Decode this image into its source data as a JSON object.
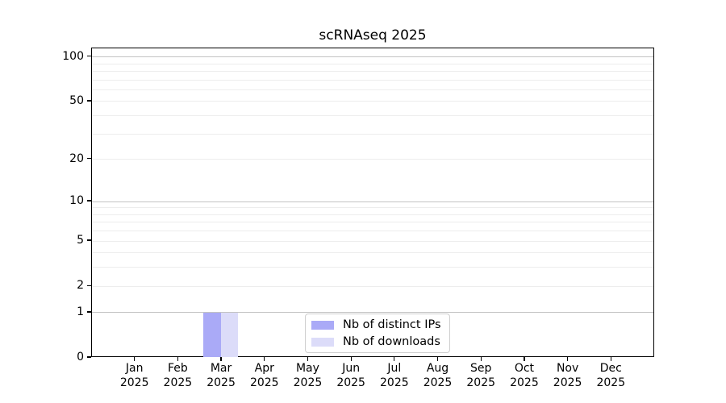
{
  "title": "scRNAseq 2025",
  "legend": {
    "items": [
      {
        "label": "Nb of distinct IPs",
        "color": "#aaaaf7"
      },
      {
        "label": "Nb of downloads",
        "color": "#dcdcf9"
      }
    ]
  },
  "chart_data": {
    "type": "bar",
    "title": "scRNAseq 2025",
    "categories": [
      "Jan",
      "Feb",
      "Mar",
      "Apr",
      "May",
      "Jun",
      "Jul",
      "Aug",
      "Sep",
      "Oct",
      "Nov",
      "Dec"
    ],
    "year": "2025",
    "series": [
      {
        "name": "Nb of distinct IPs",
        "color": "#aaaaf7",
        "values": [
          0,
          0,
          1,
          0,
          0,
          0,
          0,
          0,
          0,
          0,
          0,
          0
        ]
      },
      {
        "name": "Nb of downloads",
        "color": "#dcdcf9",
        "values": [
          0,
          0,
          1,
          0,
          0,
          0,
          0,
          0,
          0,
          0,
          0,
          0
        ]
      }
    ],
    "xlabel": "",
    "ylabel": "",
    "yscale": "log1p",
    "ylim": [
      0,
      115
    ],
    "yticks": [
      0,
      1,
      2,
      5,
      10,
      20,
      50,
      100
    ],
    "grid_major": [
      1,
      10,
      100
    ],
    "grid_minor": [
      2,
      3,
      4,
      5,
      6,
      7,
      8,
      9,
      20,
      30,
      40,
      50,
      60,
      70,
      80,
      90
    ],
    "grid_major_color": "#c3c3c3",
    "grid_minor_color": "#ededed",
    "legend_position": "lower center",
    "bar_relative_width": 0.4
  }
}
